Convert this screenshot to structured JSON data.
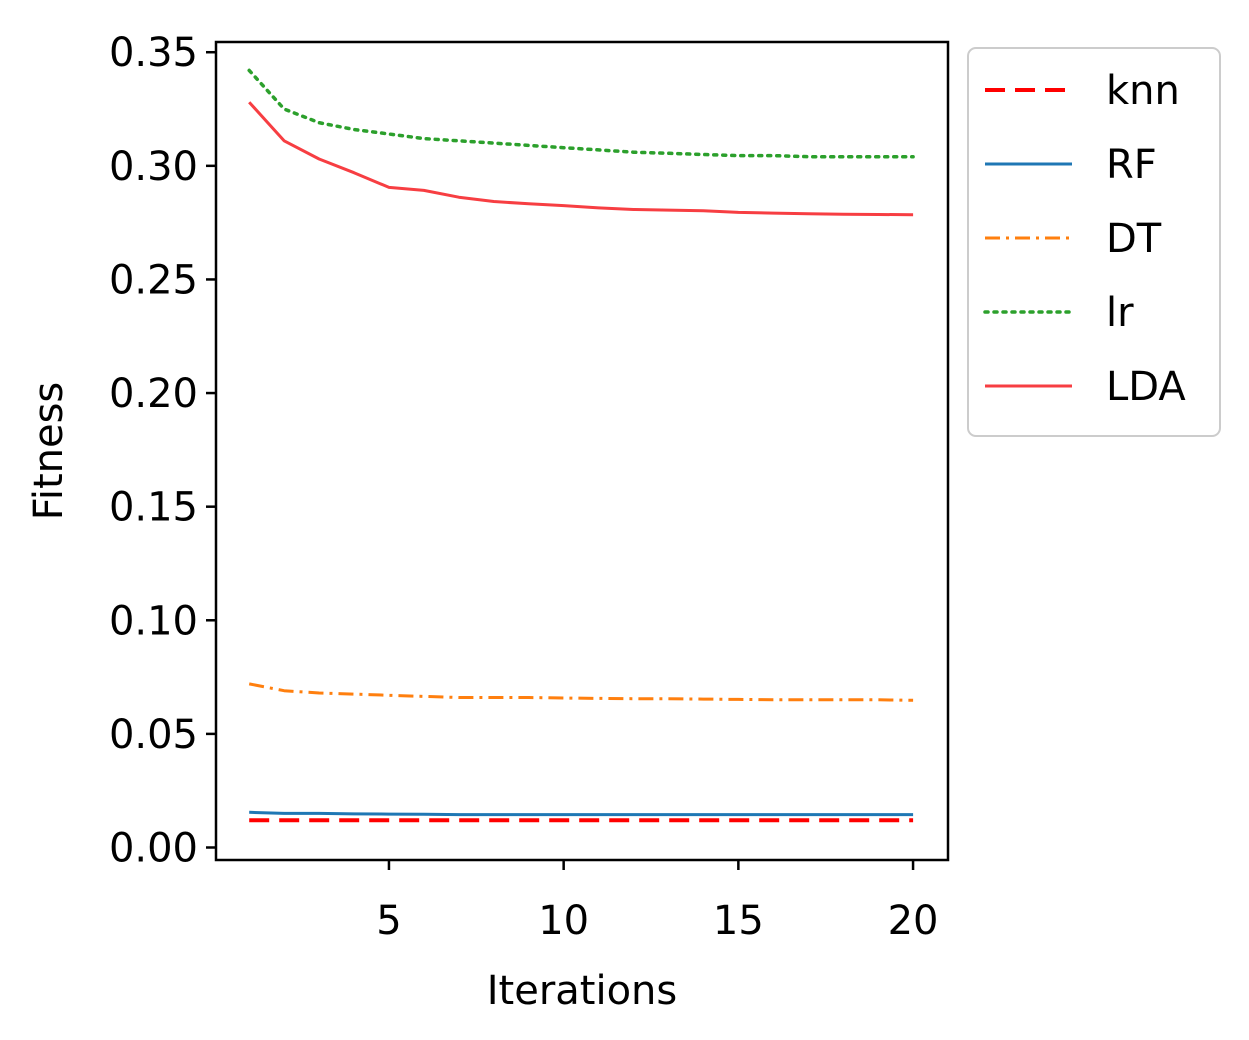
{
  "chart_data": {
    "type": "line",
    "title": "",
    "xlabel": "Iterations",
    "ylabel": "Fitness",
    "xlim": [
      0.05,
      21.0
    ],
    "ylim": [
      -0.0055,
      0.3545
    ],
    "xticks": [
      5,
      10,
      15,
      20
    ],
    "xtick_labels": [
      "5",
      "10",
      "15",
      "20"
    ],
    "yticks": [
      0.0,
      0.05,
      0.1,
      0.15,
      0.2,
      0.25,
      0.3,
      0.35
    ],
    "ytick_labels": [
      "0.00",
      "0.05",
      "0.10",
      "0.15",
      "0.20",
      "0.25",
      "0.30",
      "0.35"
    ],
    "grid": false,
    "legend_position": "outside-right-top",
    "x": [
      1,
      2,
      3,
      4,
      5,
      6,
      7,
      8,
      9,
      10,
      11,
      12,
      13,
      14,
      15,
      16,
      17,
      18,
      19,
      20
    ],
    "series": [
      {
        "name": "knn",
        "color": "#ff0000",
        "style": "dashed",
        "values": [
          0.012,
          0.012,
          0.012,
          0.012,
          0.012,
          0.012,
          0.012,
          0.012,
          0.012,
          0.012,
          0.012,
          0.012,
          0.012,
          0.012,
          0.012,
          0.012,
          0.012,
          0.012,
          0.012,
          0.012
        ]
      },
      {
        "name": "RF",
        "color": "#1f77b4",
        "style": "solid",
        "values": [
          0.0155,
          0.015,
          0.015,
          0.0148,
          0.0147,
          0.0146,
          0.0145,
          0.0145,
          0.0145,
          0.0145,
          0.0145,
          0.0145,
          0.0145,
          0.0145,
          0.0145,
          0.0145,
          0.0145,
          0.0145,
          0.0145,
          0.0145
        ]
      },
      {
        "name": "DT",
        "color": "#ff7f0e",
        "style": "dashdot",
        "values": [
          0.072,
          0.069,
          0.068,
          0.0675,
          0.067,
          0.0665,
          0.066,
          0.066,
          0.066,
          0.0658,
          0.0656,
          0.0655,
          0.0655,
          0.0653,
          0.0652,
          0.065,
          0.065,
          0.065,
          0.065,
          0.0648
        ]
      },
      {
        "name": "lr",
        "color": "#2ca02c",
        "style": "dotted",
        "values": [
          0.342,
          0.325,
          0.319,
          0.316,
          0.314,
          0.312,
          0.311,
          0.31,
          0.309,
          0.308,
          0.307,
          0.306,
          0.3055,
          0.305,
          0.3045,
          0.3045,
          0.304,
          0.304,
          0.304,
          0.304
        ]
      },
      {
        "name": "LDA",
        "color": "#f73e42",
        "style": "solid",
        "values": [
          0.328,
          0.311,
          0.303,
          0.297,
          0.2905,
          0.2892,
          0.2862,
          0.2843,
          0.2833,
          0.2825,
          0.2815,
          0.2808,
          0.2805,
          0.2802,
          0.2795,
          0.2792,
          0.2789,
          0.2787,
          0.2786,
          0.2785
        ]
      }
    ]
  }
}
